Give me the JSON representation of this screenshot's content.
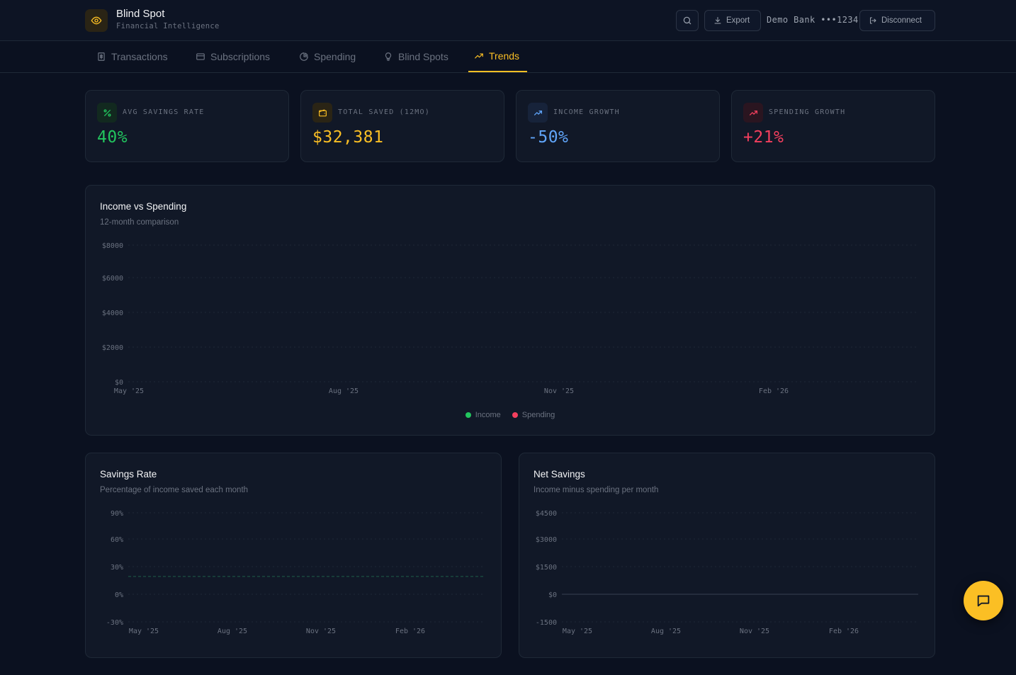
{
  "app": {
    "title": "Blind Spot",
    "subtitle": "Financial Intelligence",
    "logo_icon": "eye-icon",
    "accent": "#fbbf24"
  },
  "header": {
    "search_icon": "search-icon",
    "export_label": "Export",
    "bank_label": "Demo Bank •••1234",
    "disconnect_label": "Disconnect"
  },
  "tabs": [
    {
      "label": "Transactions",
      "icon": "receipt-icon",
      "active": false
    },
    {
      "label": "Subscriptions",
      "icon": "credit-card-icon",
      "active": false
    },
    {
      "label": "Spending",
      "icon": "pie-chart-icon",
      "active": false
    },
    {
      "label": "Blind Spots",
      "icon": "lightbulb-icon",
      "active": false
    },
    {
      "label": "Trends",
      "icon": "trending-up-icon",
      "active": true
    }
  ],
  "stats": [
    {
      "label": "AVG SAVINGS RATE",
      "value": "40%",
      "color": "#22c55e",
      "icon": "percent-icon"
    },
    {
      "label": "TOTAL SAVED (12MO)",
      "value": "$32,381",
      "color": "#fbbf24",
      "icon": "wallet-icon"
    },
    {
      "label": "INCOME GROWTH",
      "value": "-50%",
      "color": "#60a5fa",
      "icon": "trending-up-icon"
    },
    {
      "label": "SPENDING GROWTH",
      "value": "+21%",
      "color": "#f43f5e",
      "icon": "trending-up-icon"
    }
  ],
  "charts": {
    "income_spending": {
      "title": "Income vs Spending",
      "subtitle": "12-month comparison",
      "legend": [
        {
          "name": "Income",
          "color": "#22c55e"
        },
        {
          "name": "Spending",
          "color": "#f43f5e"
        }
      ]
    },
    "savings_rate": {
      "title": "Savings Rate",
      "subtitle": "Percentage of income saved each month"
    },
    "net_savings": {
      "title": "Net Savings",
      "subtitle": "Income minus spending per month"
    }
  },
  "chart_data": [
    {
      "type": "line",
      "x_ticks": [
        "May '25",
        "Aug '25",
        "Nov '25",
        "Feb '26"
      ],
      "y_ticks": [
        "$8000",
        "$6000",
        "$4000",
        "$2000",
        "$0"
      ],
      "ylim": [
        0,
        8000
      ],
      "grid": true,
      "legend_position": "bottom-center",
      "series": [
        {
          "name": "Income",
          "values": []
        },
        {
          "name": "Spending",
          "values": []
        }
      ]
    },
    {
      "type": "line",
      "x_ticks": [
        "May '25",
        "Aug '25",
        "Nov '25",
        "Feb '26"
      ],
      "y_ticks": [
        "90%",
        "60%",
        "30%",
        "0%",
        "-30%"
      ],
      "ylim": [
        -30,
        90
      ],
      "grid": true,
      "reference_line": 20,
      "series": []
    },
    {
      "type": "bar",
      "x_ticks": [
        "May '25",
        "Aug '25",
        "Nov '25",
        "Feb '26"
      ],
      "y_ticks": [
        "$4500",
        "$3000",
        "$1500",
        "$0",
        "-1500"
      ],
      "ylim": [
        -1500,
        4500
      ],
      "grid": true,
      "series": []
    }
  ],
  "fab": {
    "icon": "chat-icon"
  }
}
